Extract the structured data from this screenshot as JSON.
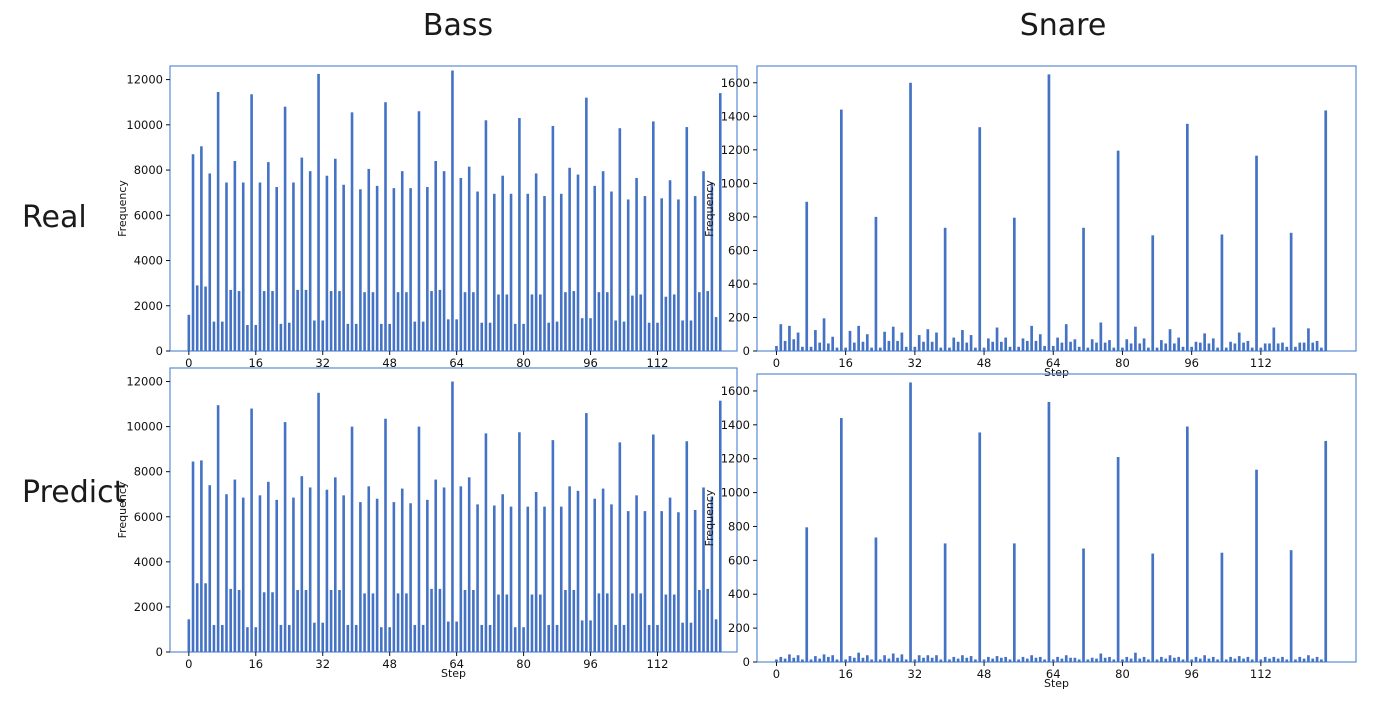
{
  "headers": {
    "col_bass": "Bass",
    "col_snare": "Snare",
    "row_real": "Real",
    "row_predict": "Predict"
  },
  "colors": {
    "bar": "#4472c4",
    "frame": "#5b8bd6"
  },
  "chart_data": [
    {
      "id": "bass-real",
      "type": "bar",
      "xlabel": "",
      "ylabel": "Frequency",
      "ylim": [
        0,
        12600
      ],
      "yticks": [
        0,
        2000,
        4000,
        6000,
        8000,
        10000,
        12000
      ],
      "xlim": [
        -4.5,
        131
      ],
      "xticks": [
        0,
        16,
        32,
        48,
        64,
        80,
        96,
        112
      ],
      "x": [
        0,
        1,
        2,
        3,
        4,
        5,
        6,
        7,
        8,
        9,
        10,
        11,
        12,
        13,
        14,
        15,
        16,
        17,
        18,
        19,
        20,
        21,
        22,
        23,
        24,
        25,
        26,
        27,
        28,
        29,
        30,
        31,
        32,
        33,
        34,
        35,
        36,
        37,
        38,
        39,
        40,
        41,
        42,
        43,
        44,
        45,
        46,
        47,
        48,
        49,
        50,
        51,
        52,
        53,
        54,
        55,
        56,
        57,
        58,
        59,
        60,
        61,
        62,
        63,
        64,
        65,
        66,
        67,
        68,
        69,
        70,
        71,
        72,
        73,
        74,
        75,
        76,
        77,
        78,
        79,
        80,
        81,
        82,
        83,
        84,
        85,
        86,
        87,
        88,
        89,
        90,
        91,
        92,
        93,
        94,
        95,
        96,
        97,
        98,
        99,
        100,
        101,
        102,
        103,
        104,
        105,
        106,
        107,
        108,
        109,
        110,
        111,
        112,
        113,
        114,
        115,
        116,
        117,
        118,
        119,
        120,
        121,
        122,
        123,
        124,
        125,
        126,
        127
      ],
      "values": [
        1600,
        8700,
        2900,
        9050,
        2850,
        7850,
        1300,
        11450,
        1300,
        7450,
        2700,
        8400,
        2650,
        7450,
        1150,
        11350,
        1150,
        7450,
        2650,
        8350,
        2650,
        7250,
        1200,
        10800,
        1250,
        7450,
        2700,
        8550,
        2700,
        7950,
        1350,
        12250,
        1350,
        7750,
        2650,
        8500,
        2650,
        7350,
        1200,
        10550,
        1200,
        7150,
        2600,
        8050,
        2600,
        7300,
        1200,
        11000,
        1200,
        7200,
        2600,
        7950,
        2600,
        7200,
        1300,
        10600,
        1300,
        7250,
        2650,
        8400,
        2700,
        7950,
        1400,
        12400,
        1400,
        7650,
        2600,
        8150,
        2600,
        7050,
        1250,
        10200,
        1250,
        6950,
        2500,
        7750,
        2500,
        6950,
        1200,
        10300,
        1200,
        6950,
        2500,
        7850,
        2500,
        6850,
        1250,
        9950,
        1300,
        6950,
        2600,
        8100,
        2650,
        7800,
        1450,
        11200,
        1450,
        7300,
        2600,
        7950,
        2600,
        7050,
        1350,
        9850,
        1300,
        6700,
        2450,
        7650,
        2500,
        6850,
        1250,
        10150,
        1250,
        6750,
        2400,
        7550,
        2500,
        6700,
        1350,
        9900,
        1350,
        6850,
        2600,
        7950,
        2650,
        7450,
        1500,
        11400
      ]
    },
    {
      "id": "snare-real",
      "type": "bar",
      "xlabel": "Step",
      "ylabel": "Frequency",
      "ylim": [
        0,
        1700
      ],
      "yticks": [
        0,
        200,
        400,
        600,
        800,
        1000,
        1200,
        1400,
        1600
      ],
      "xlim": [
        -4.5,
        134
      ],
      "xticks": [
        0,
        16,
        32,
        48,
        64,
        80,
        96,
        112
      ],
      "x": [
        0,
        1,
        2,
        3,
        4,
        5,
        6,
        7,
        8,
        9,
        10,
        11,
        12,
        13,
        14,
        15,
        16,
        17,
        18,
        19,
        20,
        21,
        22,
        23,
        24,
        25,
        26,
        27,
        28,
        29,
        30,
        31,
        32,
        33,
        34,
        35,
        36,
        37,
        38,
        39,
        40,
        41,
        42,
        43,
        44,
        45,
        46,
        47,
        48,
        49,
        50,
        51,
        52,
        53,
        54,
        55,
        56,
        57,
        58,
        59,
        60,
        61,
        62,
        63,
        64,
        65,
        66,
        67,
        68,
        69,
        70,
        71,
        72,
        73,
        74,
        75,
        76,
        77,
        78,
        79,
        80,
        81,
        82,
        83,
        84,
        85,
        86,
        87,
        88,
        89,
        90,
        91,
        92,
        93,
        94,
        95,
        96,
        97,
        98,
        99,
        100,
        101,
        102,
        103,
        104,
        105,
        106,
        107,
        108,
        109,
        110,
        111,
        112,
        113,
        114,
        115,
        116,
        117,
        118,
        119,
        120,
        121,
        122,
        123,
        124,
        125,
        126,
        127
      ],
      "values": [
        30,
        160,
        60,
        150,
        70,
        110,
        25,
        890,
        25,
        125,
        50,
        195,
        45,
        85,
        20,
        1440,
        20,
        120,
        50,
        150,
        55,
        100,
        20,
        800,
        20,
        115,
        60,
        145,
        60,
        110,
        25,
        1600,
        25,
        95,
        55,
        130,
        55,
        110,
        20,
        735,
        20,
        80,
        55,
        125,
        50,
        95,
        20,
        1335,
        20,
        75,
        55,
        140,
        55,
        80,
        25,
        795,
        25,
        75,
        60,
        150,
        60,
        100,
        30,
        1650,
        30,
        80,
        50,
        160,
        55,
        70,
        25,
        735,
        20,
        70,
        50,
        170,
        50,
        65,
        20,
        1195,
        20,
        70,
        45,
        145,
        45,
        75,
        20,
        690,
        20,
        65,
        45,
        130,
        45,
        80,
        25,
        1355,
        25,
        55,
        50,
        105,
        45,
        75,
        20,
        695,
        20,
        55,
        45,
        110,
        50,
        60,
        20,
        1165,
        20,
        45,
        45,
        140,
        45,
        50,
        25,
        705,
        25,
        50,
        50,
        135,
        50,
        60,
        20,
        1435
      ]
    },
    {
      "id": "bass-predict",
      "type": "bar",
      "xlabel": "Step",
      "ylabel": "Frequency",
      "ylim": [
        0,
        12600
      ],
      "yticks": [
        0,
        2000,
        4000,
        6000,
        8000,
        10000,
        12000
      ],
      "xlim": [
        -4.5,
        131
      ],
      "xticks": [
        0,
        16,
        32,
        48,
        64,
        80,
        96,
        112
      ],
      "x": [
        0,
        1,
        2,
        3,
        4,
        5,
        6,
        7,
        8,
        9,
        10,
        11,
        12,
        13,
        14,
        15,
        16,
        17,
        18,
        19,
        20,
        21,
        22,
        23,
        24,
        25,
        26,
        27,
        28,
        29,
        30,
        31,
        32,
        33,
        34,
        35,
        36,
        37,
        38,
        39,
        40,
        41,
        42,
        43,
        44,
        45,
        46,
        47,
        48,
        49,
        50,
        51,
        52,
        53,
        54,
        55,
        56,
        57,
        58,
        59,
        60,
        61,
        62,
        63,
        64,
        65,
        66,
        67,
        68,
        69,
        70,
        71,
        72,
        73,
        74,
        75,
        76,
        77,
        78,
        79,
        80,
        81,
        82,
        83,
        84,
        85,
        86,
        87,
        88,
        89,
        90,
        91,
        92,
        93,
        94,
        95,
        96,
        97,
        98,
        99,
        100,
        101,
        102,
        103,
        104,
        105,
        106,
        107,
        108,
        109,
        110,
        111,
        112,
        113,
        114,
        115,
        116,
        117,
        118,
        119,
        120,
        121,
        122,
        123,
        124,
        125,
        126,
        127
      ],
      "values": [
        1450,
        8450,
        3050,
        8500,
        3050,
        7400,
        1200,
        10950,
        1200,
        7000,
        2800,
        7650,
        2750,
        6850,
        1100,
        10800,
        1100,
        6950,
        2650,
        7550,
        2650,
        6750,
        1200,
        10200,
        1200,
        6850,
        2750,
        7800,
        2750,
        7300,
        1300,
        11500,
        1300,
        7200,
        2750,
        7750,
        2750,
        6950,
        1200,
        10000,
        1200,
        6650,
        2600,
        7350,
        2600,
        6800,
        1100,
        10350,
        1100,
        6650,
        2600,
        7250,
        2600,
        6600,
        1200,
        10000,
        1200,
        6750,
        2800,
        7650,
        2800,
        7300,
        1350,
        12000,
        1350,
        7350,
        2750,
        7750,
        2750,
        6550,
        1200,
        9700,
        1200,
        6500,
        2550,
        7000,
        2550,
        6450,
        1100,
        9750,
        1100,
        6450,
        2550,
        7100,
        2550,
        6450,
        1200,
        9400,
        1200,
        6450,
        2750,
        7350,
        2750,
        7150,
        1400,
        10600,
        1400,
        6800,
        2600,
        7250,
        2600,
        6550,
        1200,
        9300,
        1200,
        6250,
        2600,
        6950,
        2600,
        6250,
        1200,
        9650,
        1200,
        6250,
        2550,
        6850,
        2550,
        6200,
        1300,
        9350,
        1300,
        6300,
        2750,
        7300,
        2800,
        6900,
        1450,
        11150
      ]
    },
    {
      "id": "snare-predict",
      "type": "bar",
      "xlabel": "Step",
      "ylabel": "Frequency",
      "ylim": [
        0,
        1700
      ],
      "yticks": [
        0,
        200,
        400,
        600,
        800,
        1000,
        1200,
        1400,
        1600
      ],
      "xlim": [
        -4.5,
        134
      ],
      "xticks": [
        0,
        16,
        32,
        48,
        64,
        80,
        96,
        112
      ],
      "x": [
        0,
        1,
        2,
        3,
        4,
        5,
        6,
        7,
        8,
        9,
        10,
        11,
        12,
        13,
        14,
        15,
        16,
        17,
        18,
        19,
        20,
        21,
        22,
        23,
        24,
        25,
        26,
        27,
        28,
        29,
        30,
        31,
        32,
        33,
        34,
        35,
        36,
        37,
        38,
        39,
        40,
        41,
        42,
        43,
        44,
        45,
        46,
        47,
        48,
        49,
        50,
        51,
        52,
        53,
        54,
        55,
        56,
        57,
        58,
        59,
        60,
        61,
        62,
        63,
        64,
        65,
        66,
        67,
        68,
        69,
        70,
        71,
        72,
        73,
        74,
        75,
        76,
        77,
        78,
        79,
        80,
        81,
        82,
        83,
        84,
        85,
        86,
        87,
        88,
        89,
        90,
        91,
        92,
        93,
        94,
        95,
        96,
        97,
        98,
        99,
        100,
        101,
        102,
        103,
        104,
        105,
        106,
        107,
        108,
        109,
        110,
        111,
        112,
        113,
        114,
        115,
        116,
        117,
        118,
        119,
        120,
        121,
        122,
        123,
        124,
        125,
        126,
        127
      ],
      "values": [
        15,
        30,
        20,
        45,
        25,
        40,
        15,
        795,
        15,
        35,
        20,
        45,
        30,
        40,
        15,
        1440,
        15,
        35,
        25,
        55,
        25,
        40,
        15,
        735,
        15,
        40,
        20,
        50,
        25,
        45,
        15,
        1650,
        15,
        40,
        25,
        40,
        25,
        40,
        15,
        700,
        15,
        30,
        20,
        40,
        25,
        35,
        15,
        1355,
        15,
        30,
        20,
        35,
        25,
        30,
        15,
        700,
        15,
        30,
        20,
        40,
        25,
        30,
        15,
        1535,
        15,
        30,
        20,
        40,
        25,
        25,
        15,
        670,
        15,
        25,
        20,
        50,
        25,
        30,
        15,
        1210,
        15,
        30,
        20,
        55,
        20,
        30,
        15,
        640,
        15,
        30,
        20,
        40,
        25,
        30,
        15,
        1390,
        15,
        30,
        20,
        40,
        20,
        30,
        15,
        645,
        15,
        30,
        20,
        35,
        20,
        30,
        15,
        1135,
        15,
        30,
        20,
        30,
        20,
        30,
        15,
        660,
        15,
        30,
        20,
        40,
        20,
        30,
        15,
        1305
      ]
    }
  ]
}
